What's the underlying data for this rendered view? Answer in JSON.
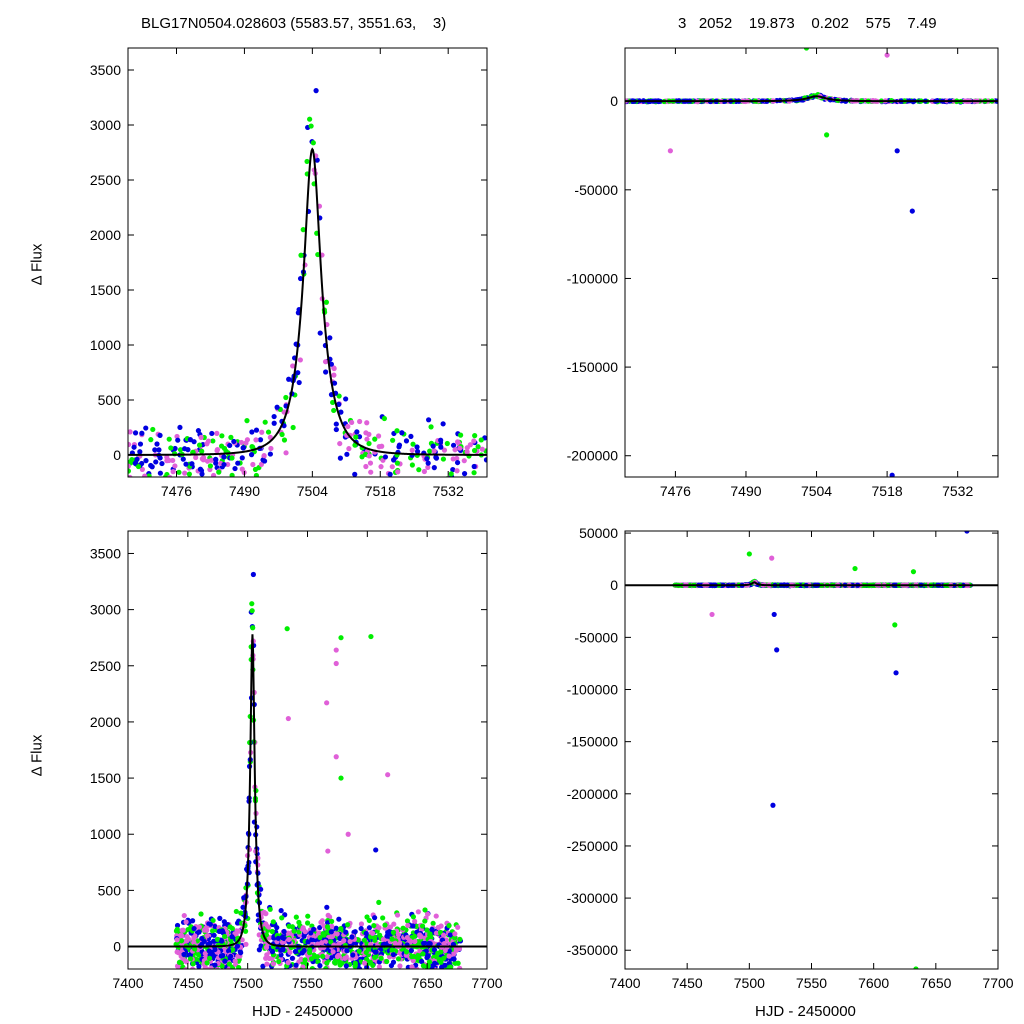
{
  "header": {
    "left": "BLG17N0504.028603 (5583.57, 3551.63,    3)",
    "right": "3   2052    19.873    0.202    575    7.49"
  },
  "colors": {
    "magenta": "#e060d8",
    "green": "#00ee00",
    "blue": "#0000e0",
    "model": "#000000"
  },
  "chart_data": [
    {
      "id": "top-left",
      "type": "scatter",
      "xlim": [
        7466,
        7540
      ],
      "ylim": [
        -200,
        3700
      ],
      "xticks": [
        7476,
        7490,
        7504,
        7518,
        7532
      ],
      "yticks": [
        0,
        500,
        1000,
        1500,
        2000,
        2500,
        3000,
        3500
      ],
      "ylabel": "Δ Flux",
      "xlabel": "",
      "model": {
        "t0": 7504,
        "peak": 2780,
        "tE": 4.5
      }
    },
    {
      "id": "top-right",
      "type": "scatter",
      "xlim": [
        7466,
        7540
      ],
      "ylim": [
        -212000,
        30000
      ],
      "xticks": [
        7476,
        7490,
        7504,
        7518,
        7532
      ],
      "yticks": [
        0,
        -50000,
        -100000,
        -150000,
        -200000
      ],
      "ylabel": "",
      "xlabel": "",
      "model": {
        "t0": 7504,
        "peak": 2780,
        "tE": 4.5
      },
      "outliers": [
        {
          "x": 7502,
          "y": 30000,
          "color": "green"
        },
        {
          "x": 7518,
          "y": 26000,
          "color": "magenta"
        },
        {
          "x": 7475,
          "y": -28000,
          "color": "magenta"
        },
        {
          "x": 7506,
          "y": -19000,
          "color": "green"
        },
        {
          "x": 7520,
          "y": -28000,
          "color": "blue"
        },
        {
          "x": 7523,
          "y": -62000,
          "color": "blue"
        },
        {
          "x": 7519,
          "y": -211000,
          "color": "blue"
        }
      ]
    },
    {
      "id": "bottom-left",
      "type": "scatter",
      "xlim": [
        7400,
        7700
      ],
      "ylim": [
        -200,
        3700
      ],
      "xticks": [
        7400,
        7450,
        7500,
        7550,
        7600,
        7650,
        7700
      ],
      "yticks": [
        0,
        500,
        1000,
        1500,
        2000,
        2500,
        3000,
        3500
      ],
      "ylabel": "Δ Flux",
      "xlabel": "HJD - 2450000",
      "model": {
        "t0": 7504,
        "peak": 2780,
        "tE": 4.5
      },
      "outliers": [
        {
          "x": 7533,
          "y": 2830,
          "color": "green"
        },
        {
          "x": 7578,
          "y": 2750,
          "color": "green"
        },
        {
          "x": 7603,
          "y": 2760,
          "color": "green"
        },
        {
          "x": 7574,
          "y": 2640,
          "color": "magenta"
        },
        {
          "x": 7574,
          "y": 2520,
          "color": "magenta"
        },
        {
          "x": 7566,
          "y": 2170,
          "color": "magenta"
        },
        {
          "x": 7534,
          "y": 2030,
          "color": "magenta"
        },
        {
          "x": 7574,
          "y": 1690,
          "color": "magenta"
        },
        {
          "x": 7617,
          "y": 1530,
          "color": "magenta"
        },
        {
          "x": 7578,
          "y": 1500,
          "color": "green"
        },
        {
          "x": 7584,
          "y": 1000,
          "color": "magenta"
        },
        {
          "x": 7607,
          "y": 860,
          "color": "blue"
        },
        {
          "x": 7567,
          "y": 850,
          "color": "magenta"
        }
      ]
    },
    {
      "id": "bottom-right",
      "type": "scatter",
      "xlim": [
        7400,
        7700
      ],
      "ylim": [
        -368000,
        52000
      ],
      "xticks": [
        7400,
        7450,
        7500,
        7550,
        7600,
        7650,
        7700
      ],
      "yticks": [
        50000,
        0,
        -50000,
        -100000,
        -150000,
        -200000,
        -250000,
        -300000,
        -350000
      ],
      "ylabel": "",
      "xlabel": "HJD - 2450000",
      "model": {
        "t0": 7504,
        "peak": 2780,
        "tE": 4.5
      },
      "outliers": [
        {
          "x": 7675,
          "y": 52000,
          "color": "blue"
        },
        {
          "x": 7500,
          "y": 30000,
          "color": "green"
        },
        {
          "x": 7518,
          "y": 26000,
          "color": "magenta"
        },
        {
          "x": 7585,
          "y": 16000,
          "color": "green"
        },
        {
          "x": 7632,
          "y": 13000,
          "color": "green"
        },
        {
          "x": 7470,
          "y": -28000,
          "color": "magenta"
        },
        {
          "x": 7520,
          "y": -28000,
          "color": "blue"
        },
        {
          "x": 7522,
          "y": -62000,
          "color": "blue"
        },
        {
          "x": 7617,
          "y": -38000,
          "color": "green"
        },
        {
          "x": 7618,
          "y": -84000,
          "color": "blue"
        },
        {
          "x": 7519,
          "y": -211000,
          "color": "blue"
        },
        {
          "x": 7634,
          "y": -368000,
          "color": "green"
        }
      ]
    }
  ]
}
